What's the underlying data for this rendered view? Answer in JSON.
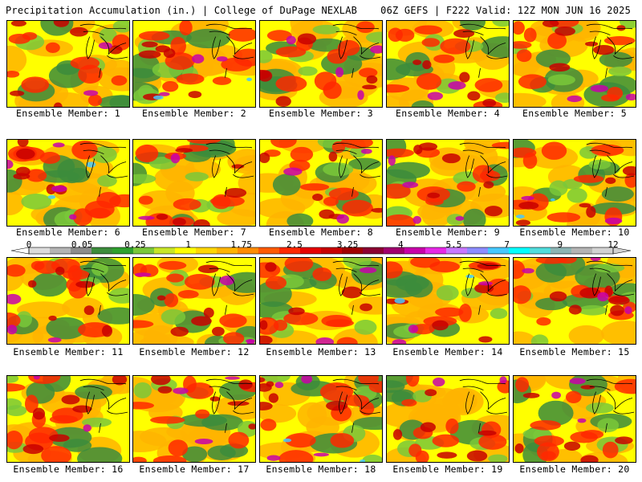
{
  "header": {
    "title_left": "Precipitation Accumulation (in.) | College of DuPage NEXLAB",
    "title_right": "06Z GEFS | F222 Valid: 12Z MON JUN 16 2025"
  },
  "panels": [
    {
      "label": "Ensemble Member: 1"
    },
    {
      "label": "Ensemble Member: 2"
    },
    {
      "label": "Ensemble Member: 3"
    },
    {
      "label": "Ensemble Member: 4"
    },
    {
      "label": "Ensemble Member: 5"
    },
    {
      "label": "Ensemble Member: 6"
    },
    {
      "label": "Ensemble Member: 7"
    },
    {
      "label": "Ensemble Member: 8"
    },
    {
      "label": "Ensemble Member: 9"
    },
    {
      "label": "Ensemble Member: 10"
    },
    {
      "label": "Ensemble Member: 11"
    },
    {
      "label": "Ensemble Member: 12"
    },
    {
      "label": "Ensemble Member: 13"
    },
    {
      "label": "Ensemble Member: 14"
    },
    {
      "label": "Ensemble Member: 15"
    },
    {
      "label": "Ensemble Member: 16"
    },
    {
      "label": "Ensemble Member: 17"
    },
    {
      "label": "Ensemble Member: 18"
    },
    {
      "label": "Ensemble Member: 19"
    },
    {
      "label": "Ensemble Member: 20"
    }
  ],
  "colorbar": {
    "labels": [
      "0",
      "0.05",
      "0.25",
      "1",
      "1.75",
      "2.5",
      "3.25",
      "4",
      "5.5",
      "7",
      "9",
      "12"
    ],
    "colors": [
      "#dcdcdc",
      "#b4b4b4",
      "#8c8c8c",
      "#3c8c3c",
      "#2ea02e",
      "#7ac83a",
      "#c8e628",
      "#ffff00",
      "#ffd700",
      "#ffb400",
      "#ff8c00",
      "#ff5a00",
      "#ff2800",
      "#e60000",
      "#c80000",
      "#a00000",
      "#8c0032",
      "#a0006e",
      "#c800aa",
      "#e628e6",
      "#c878ff",
      "#8c8cff",
      "#46c8ff",
      "#00ffff",
      "#50dcdc",
      "#8cb4b4",
      "#b4b4b4",
      "#d2d2d2"
    ]
  },
  "map_colors": {
    "green": "#3c8c3c",
    "light_green": "#7ac83a",
    "yellow": "#ffff00",
    "orange": "#ffb400",
    "red": "#ff2800",
    "dark_red": "#c80000",
    "magenta": "#c800aa",
    "cyan": "#46c8ff",
    "gray": "#8c8c8c"
  }
}
